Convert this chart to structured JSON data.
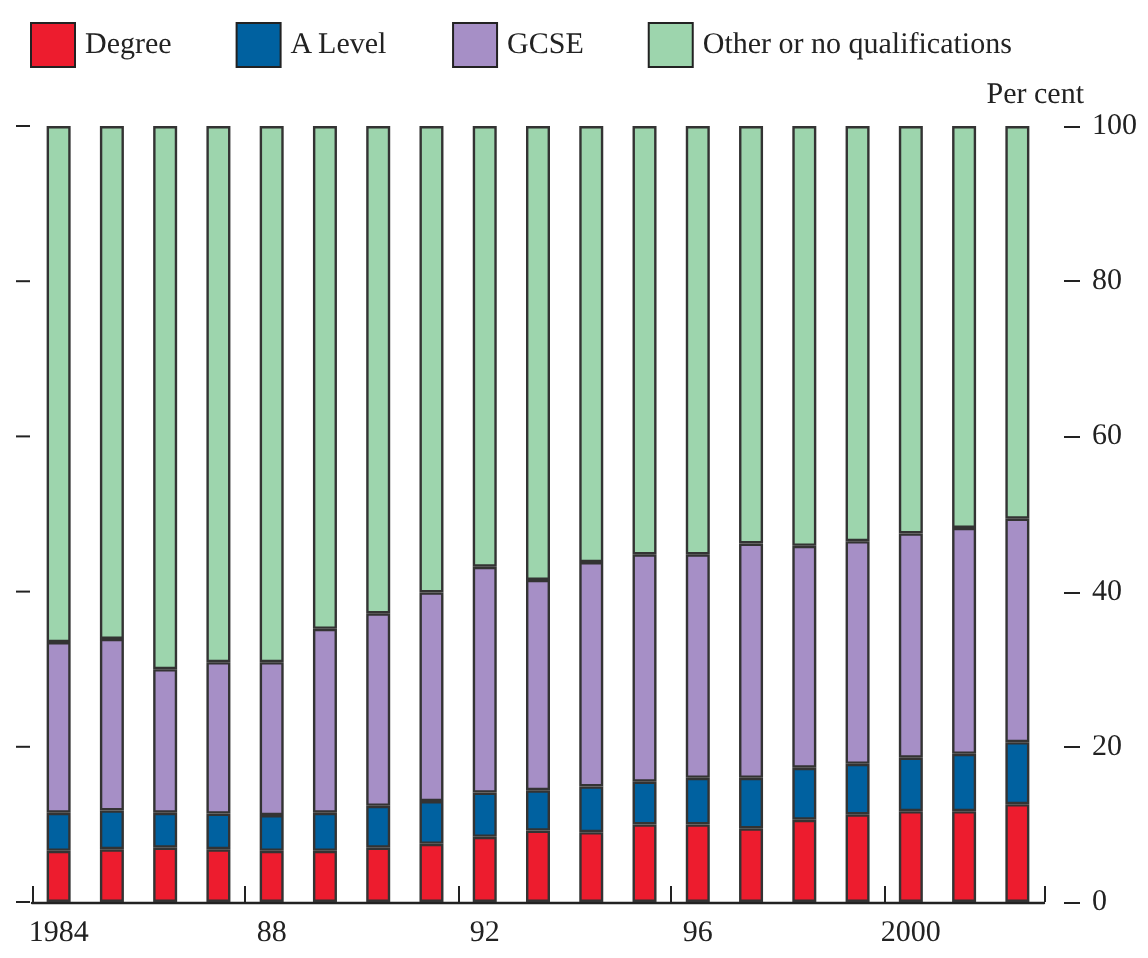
{
  "chart_data": {
    "type": "bar",
    "stacked": true,
    "ylabel": "Per cent",
    "categories": [
      "1984",
      null,
      null,
      null,
      "88",
      null,
      null,
      null,
      "92",
      null,
      null,
      null,
      "96",
      null,
      null,
      null,
      "2000",
      null,
      null
    ],
    "series": [
      {
        "name": "Degree",
        "color": "#ed1c2e",
        "values": [
          6.6,
          6.8,
          7.0,
          6.8,
          6.6,
          6.6,
          7.0,
          7.5,
          8.4,
          9.2,
          9.0,
          10.0,
          10.0,
          9.5,
          10.6,
          11.3,
          11.7,
          11.7,
          12.6
        ]
      },
      {
        "name": "A Level",
        "color": "#0061a0",
        "values": [
          4.9,
          5.0,
          4.5,
          4.6,
          4.6,
          4.9,
          5.4,
          5.5,
          5.7,
          5.2,
          5.9,
          5.5,
          6.0,
          6.5,
          6.7,
          6.5,
          6.9,
          7.4,
          8.0
        ]
      },
      {
        "name": "GCSE",
        "color": "#a68fc6",
        "values": [
          22.0,
          22.1,
          18.5,
          19.5,
          19.7,
          23.7,
          24.8,
          26.9,
          29.1,
          27.1,
          28.9,
          29.3,
          28.8,
          30.2,
          28.6,
          28.7,
          28.9,
          29.1,
          28.8
        ]
      },
      {
        "name": "Other or no qualifications",
        "color": "#9dd5ad",
        "values": [
          66.5,
          66.1,
          70.0,
          69.1,
          69.1,
          64.8,
          62.8,
          60.1,
          56.8,
          58.5,
          56.2,
          55.2,
          55.2,
          53.8,
          54.1,
          53.5,
          52.5,
          51.8,
          50.6
        ]
      }
    ],
    "ylim": [
      0,
      100
    ],
    "yticks": [
      0,
      20,
      40,
      60,
      80,
      100
    ],
    "grid": false,
    "legend": "top"
  }
}
